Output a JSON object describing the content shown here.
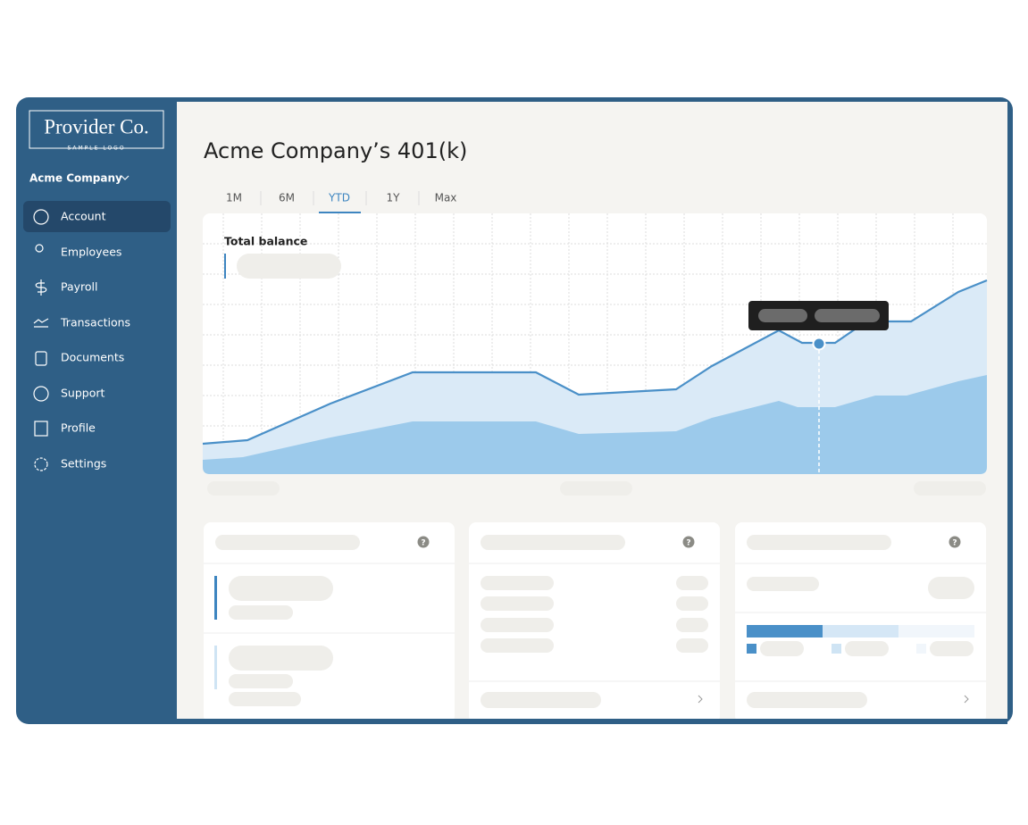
{
  "logo": {
    "name": "Provider Co.",
    "tagline": "SAMPLE LOGO"
  },
  "company_menu": "Acme Company",
  "nav": [
    "Account",
    "Employees",
    "Payroll",
    "Transactions",
    "Documents",
    "Support",
    "Profile",
    "Settings"
  ],
  "title": "Acme Company’s 401(k)",
  "tabs": [
    "1M",
    "6M",
    "YTD",
    "1Y",
    "Max"
  ],
  "chart_label": "Total balance",
  "help_icon": "?"
}
